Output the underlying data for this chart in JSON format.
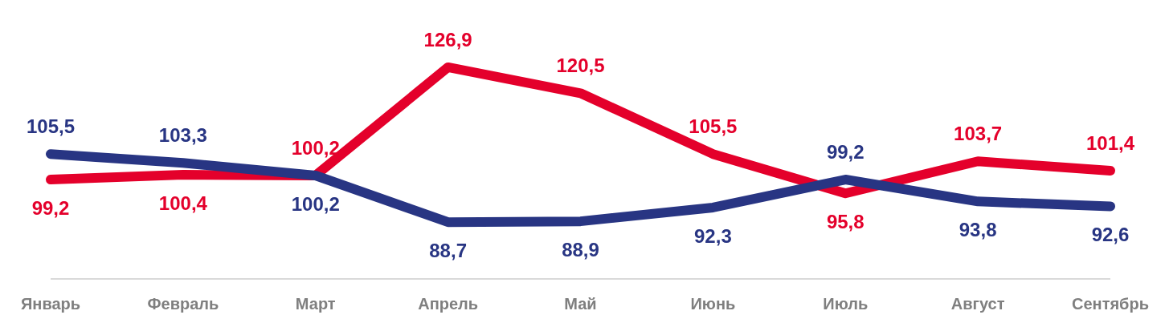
{
  "chart_data": {
    "type": "line",
    "categories": [
      "Январь",
      "Февраль",
      "Март",
      "Апрель",
      "Май",
      "Июнь",
      "Июль",
      "Август",
      "Сентябрь"
    ],
    "series": [
      {
        "color": "#e4002b",
        "values": [
          99.2,
          100.4,
          100.2,
          126.9,
          120.5,
          105.5,
          95.8,
          103.7,
          101.4
        ],
        "value_labels": [
          "99,2",
          "100,4",
          "100,2",
          "126,9",
          "120,5",
          "105,5",
          "95,8",
          "103,7",
          "101,4"
        ]
      },
      {
        "color": "#283583",
        "values": [
          105.5,
          103.3,
          100.2,
          88.7,
          88.9,
          92.3,
          99.2,
          93.8,
          92.6
        ],
        "value_labels": [
          "105,5",
          "103,3",
          "100,2",
          "88,7",
          "88,9",
          "92,3",
          "99,2",
          "93,8",
          "92,6"
        ]
      }
    ],
    "marker": "none",
    "line_style": "solid"
  }
}
